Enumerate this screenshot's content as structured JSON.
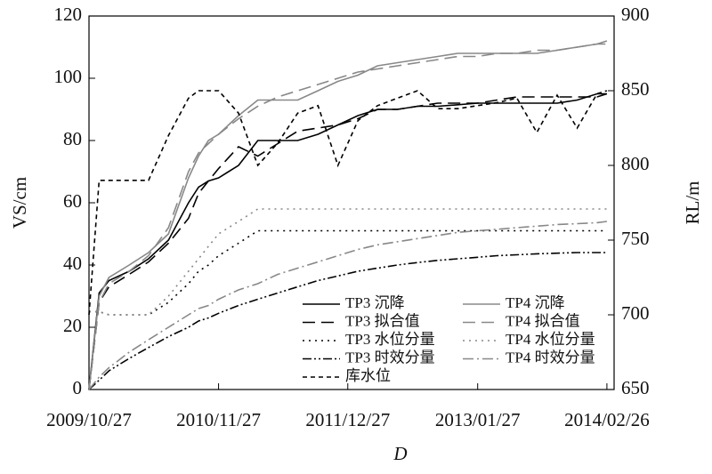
{
  "chart_data": {
    "type": "line",
    "x_label": "D",
    "y_label": "VS/cm",
    "y2_label": "RL/m",
    "x": [
      "2009/10/27",
      "2009/11/27",
      "2009/12/27",
      "2010/02/27",
      "2010/04/27",
      "2010/06/27",
      "2010/08/27",
      "2010/09/27",
      "2010/10/27",
      "2010/11/27",
      "2011/01/27",
      "2011/03/27",
      "2011/05/27",
      "2011/07/27",
      "2011/09/27",
      "2011/11/27",
      "2012/01/27",
      "2012/03/27",
      "2012/05/27",
      "2012/07/27",
      "2012/09/27",
      "2012/11/27",
      "2013/01/27",
      "2013/03/27",
      "2013/05/27",
      "2013/07/27",
      "2013/09/27",
      "2013/11/27",
      "2014/01/27",
      "2014/02/26"
    ],
    "xlim": [
      "2009/10/27",
      "2014/03/20"
    ],
    "xticks": [
      "2009/10/27",
      "2010/11/27",
      "2011/12/27",
      "2013/01/27",
      "2014/02/26"
    ],
    "ylim": [
      0,
      120
    ],
    "yticks": [
      0,
      20,
      40,
      60,
      80,
      100,
      120
    ],
    "y2lim": [
      650,
      900
    ],
    "y2ticks": [
      650,
      700,
      750,
      800,
      850,
      900
    ],
    "grid": false,
    "legend": "lower right",
    "series": [
      {
        "name": "TP3 沉降",
        "color": "#000000",
        "style": "solid",
        "values": [
          0,
          31,
          35,
          38,
          42,
          48,
          60,
          65,
          67,
          68,
          72,
          80,
          80,
          80,
          82,
          85,
          88,
          90,
          90,
          91,
          91,
          91.5,
          92,
          92,
          92,
          92,
          92,
          93,
          95,
          95
        ]
      },
      {
        "name": "TP4 沉降",
        "color": "#888888",
        "style": "solid",
        "values": [
          0,
          30,
          36,
          40,
          44,
          50,
          68,
          75,
          80,
          82,
          88,
          93,
          93,
          93,
          96,
          99,
          101,
          104,
          105,
          106,
          107,
          108,
          108,
          108,
          108,
          108,
          109,
          110,
          111,
          112
        ]
      },
      {
        "name": "TP3 拟合值",
        "color": "#000000",
        "style": "dashed",
        "values": [
          0,
          28,
          33,
          37,
          41,
          47,
          55,
          63,
          67,
          71,
          78,
          75,
          79,
          83,
          84,
          85,
          87,
          90,
          90,
          91,
          92,
          92,
          92,
          93,
          94,
          94,
          94,
          94,
          94,
          95
        ]
      },
      {
        "name": "TP4 拟合值",
        "color": "#888888",
        "style": "dashed",
        "values": [
          0,
          28,
          34,
          38,
          43,
          52,
          70,
          76,
          79,
          82,
          87,
          91,
          94,
          96,
          98,
          100,
          102,
          103,
          104,
          105,
          106,
          107,
          107,
          108,
          108,
          109,
          109,
          110,
          111,
          111
        ]
      },
      {
        "name": "TP3 水位分量",
        "color": "#000000",
        "style": "dotted",
        "values": [
          25,
          25,
          24,
          24,
          24,
          28,
          34,
          38,
          40,
          43,
          47,
          51,
          51,
          51,
          51,
          51,
          51,
          51,
          51,
          51,
          51,
          51,
          51,
          51,
          51,
          51,
          51,
          51,
          51,
          51
        ]
      },
      {
        "name": "TP4 水位分量",
        "color": "#888888",
        "style": "dotted",
        "values": [
          25,
          25,
          24,
          24,
          24,
          30,
          38,
          42,
          46,
          50,
          54,
          58,
          58,
          58,
          58,
          58,
          58,
          58,
          58,
          58,
          58,
          58,
          58,
          58,
          58,
          58,
          58,
          58,
          58,
          58
        ]
      },
      {
        "name": "TP3 时效分量",
        "color": "#000000",
        "style": "dashdotdot",
        "values": [
          0,
          3,
          6,
          10,
          13.5,
          17,
          20,
          22,
          23,
          24.5,
          27,
          29,
          31,
          33,
          35,
          36.5,
          38,
          39,
          40,
          40.8,
          41.5,
          42,
          42.5,
          43,
          43.3,
          43.6,
          43.8,
          44,
          44,
          44
        ]
      },
      {
        "name": "TP4 时效分量",
        "color": "#888888",
        "style": "dashdot",
        "values": [
          0,
          4,
          7,
          12,
          16,
          20,
          24,
          26,
          27,
          29,
          32,
          34,
          37,
          39,
          41,
          43,
          45,
          46.5,
          47.5,
          48.5,
          49.5,
          50.5,
          51,
          51.5,
          52,
          52.5,
          53,
          53.3,
          53.6,
          54
        ]
      },
      {
        "name": "库水位",
        "color": "#000000",
        "style": "shortdash",
        "axis": "y2",
        "values": [
          700,
          790,
          790,
          790,
          790,
          820,
          845,
          850,
          850,
          850,
          835,
          800,
          815,
          835,
          840,
          800,
          830,
          840,
          845,
          850,
          838,
          838,
          840,
          842,
          845,
          822,
          847,
          825,
          848,
          850
        ]
      }
    ]
  }
}
